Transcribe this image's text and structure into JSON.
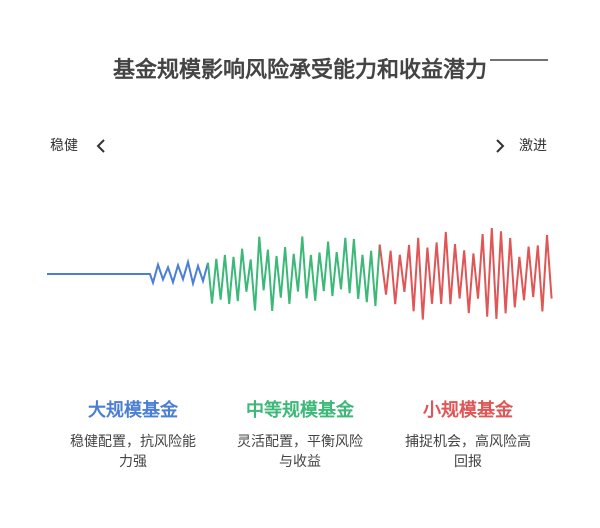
{
  "title": "基金规模影响风险承受能力和收益潜力",
  "scale": {
    "left": "稳健",
    "right": "激进"
  },
  "columns": [
    {
      "title": "大规模基金",
      "description": "稳健配置，抗风险能力强"
    },
    {
      "title": "中等规模基金",
      "description": "灵活配置，平衡风险与收益"
    },
    {
      "title": "小规模基金",
      "description": "捕捉机会，高风险高回报"
    }
  ]
}
